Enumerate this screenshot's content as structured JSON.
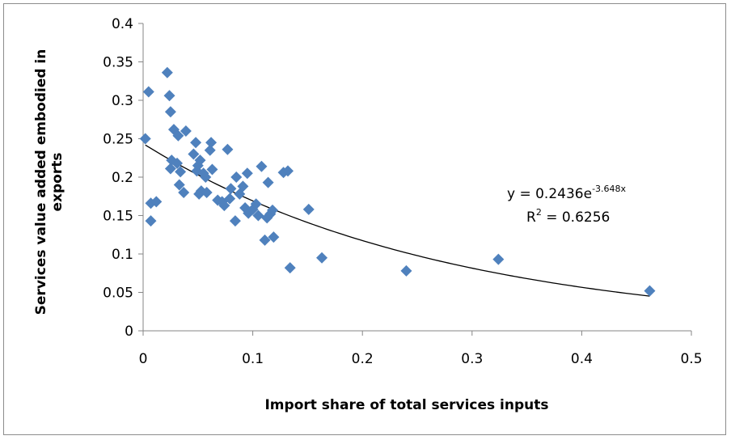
{
  "chart_data": {
    "type": "scatter",
    "xlabel": "Import share of total services inputs",
    "ylabel_lines": [
      "Services value added embodied in",
      "exports"
    ],
    "xlim": [
      0,
      0.5
    ],
    "ylim": [
      0,
      0.4
    ],
    "x_ticks": [
      "0",
      "0.1",
      "0.2",
      "0.3",
      "0.4",
      "0.5"
    ],
    "y_ticks": [
      "0",
      "0.05",
      "0.1",
      "0.15",
      "0.2",
      "0.25",
      "0.3",
      "0.35",
      "0.4"
    ],
    "grid": false,
    "marker_color": "#4f81bd",
    "marker": "diamond",
    "trendline": {
      "type": "exponential",
      "a": 0.2436,
      "b": -3.648,
      "x_range": [
        0.002,
        0.462
      ],
      "color": "#000000",
      "equation_main": "y = 0.2436e",
      "equation_exp": "-3.648x",
      "r2_main": "R",
      "r2_exp": "2",
      "r2_rest": " = 0.6256"
    },
    "points": [
      [
        0.002,
        0.25
      ],
      [
        0.005,
        0.311
      ],
      [
        0.007,
        0.166
      ],
      [
        0.007,
        0.143
      ],
      [
        0.012,
        0.168
      ],
      [
        0.022,
        0.336
      ],
      [
        0.024,
        0.306
      ],
      [
        0.025,
        0.285
      ],
      [
        0.025,
        0.211
      ],
      [
        0.026,
        0.222
      ],
      [
        0.028,
        0.262
      ],
      [
        0.031,
        0.218
      ],
      [
        0.032,
        0.254
      ],
      [
        0.033,
        0.19
      ],
      [
        0.034,
        0.207
      ],
      [
        0.037,
        0.18
      ],
      [
        0.039,
        0.26
      ],
      [
        0.046,
        0.23
      ],
      [
        0.048,
        0.245
      ],
      [
        0.049,
        0.208
      ],
      [
        0.05,
        0.215
      ],
      [
        0.051,
        0.178
      ],
      [
        0.052,
        0.222
      ],
      [
        0.053,
        0.182
      ],
      [
        0.055,
        0.205
      ],
      [
        0.057,
        0.2
      ],
      [
        0.058,
        0.18
      ],
      [
        0.061,
        0.235
      ],
      [
        0.062,
        0.245
      ],
      [
        0.063,
        0.21
      ],
      [
        0.068,
        0.17
      ],
      [
        0.072,
        0.168
      ],
      [
        0.074,
        0.163
      ],
      [
        0.077,
        0.236
      ],
      [
        0.079,
        0.172
      ],
      [
        0.08,
        0.185
      ],
      [
        0.084,
        0.143
      ],
      [
        0.085,
        0.2
      ],
      [
        0.088,
        0.178
      ],
      [
        0.091,
        0.188
      ],
      [
        0.093,
        0.16
      ],
      [
        0.095,
        0.205
      ],
      [
        0.096,
        0.153
      ],
      [
        0.1,
        0.158
      ],
      [
        0.103,
        0.165
      ],
      [
        0.105,
        0.15
      ],
      [
        0.108,
        0.214
      ],
      [
        0.111,
        0.118
      ],
      [
        0.113,
        0.147
      ],
      [
        0.114,
        0.193
      ],
      [
        0.116,
        0.152
      ],
      [
        0.118,
        0.157
      ],
      [
        0.119,
        0.122
      ],
      [
        0.128,
        0.206
      ],
      [
        0.132,
        0.208
      ],
      [
        0.134,
        0.082
      ],
      [
        0.151,
        0.158
      ],
      [
        0.163,
        0.095
      ],
      [
        0.24,
        0.078
      ],
      [
        0.324,
        0.093
      ],
      [
        0.462,
        0.052
      ]
    ]
  }
}
